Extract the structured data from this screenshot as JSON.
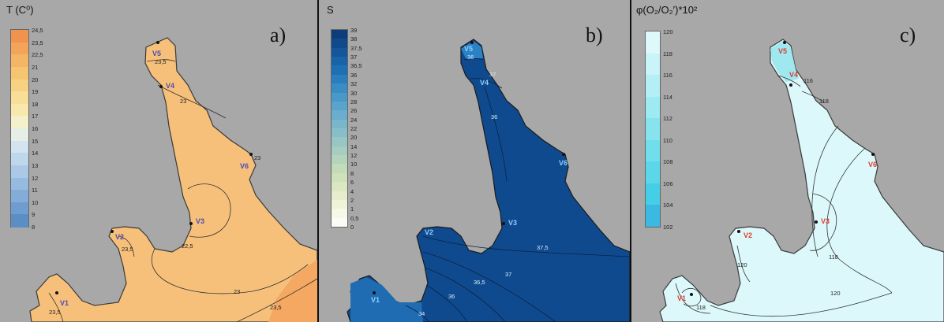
{
  "panels": [
    {
      "id": "a",
      "label": "a)",
      "legend_title": "T (C⁰)",
      "legend_ticks": [
        "24,5",
        "23,5",
        "22,5",
        "21",
        "20",
        "19",
        "18",
        "17",
        "16",
        "15",
        "14",
        "13",
        "12",
        "11",
        "10",
        "9",
        "8"
      ],
      "legend_colors": [
        "#f0934f",
        "#f2a55a",
        "#f4b665",
        "#f6c572",
        "#f7d283",
        "#f8de96",
        "#f8e8ae",
        "#f4f0cc",
        "#e6eee6",
        "#d3e3ef",
        "#bfd6ec",
        "#abc9e6",
        "#96bbe0",
        "#83acd8",
        "#6f9dcf",
        "#5c8ec6"
      ],
      "stations": [
        "V1",
        "V2",
        "V3",
        "V4",
        "V5",
        "V6"
      ],
      "contour_labels": [
        "23,5",
        "23",
        "22,5",
        "23",
        "23,5",
        "23,5",
        "23,5",
        "23"
      ],
      "map_fill": "#f7c07a",
      "map_fill_warm": "#f4a862",
      "station_color": "#4b4bb5"
    },
    {
      "id": "b",
      "label": "b)",
      "legend_title": "S",
      "legend_ticks": [
        "39",
        "38",
        "37,5",
        "37",
        "36,5",
        "36",
        "32",
        "30",
        "28",
        "26",
        "24",
        "22",
        "20",
        "14",
        "12",
        "10",
        "8",
        "6",
        "4",
        "2",
        "1",
        "0,5",
        "0"
      ],
      "legend_colors": [
        "#0d3d7a",
        "#114a8c",
        "#15569b",
        "#1963a9",
        "#1d70b4",
        "#2a7ebd",
        "#3a8cc4",
        "#4a98c8",
        "#5aa3cb",
        "#6aadcc",
        "#79b6ca",
        "#88bec8",
        "#97c6c4",
        "#a6cdbf",
        "#b4d4bb",
        "#c2dbb9",
        "#cfe1bb",
        "#dbe7c2",
        "#e6edcc",
        "#eff3d9",
        "#f6f8e8",
        "#fbfcf4"
      ],
      "stations": [
        "V1",
        "V2",
        "V3",
        "V4",
        "V5",
        "V6"
      ],
      "contour_labels": [
        "36",
        "37",
        "36",
        "37,5",
        "37",
        "36,5",
        "36",
        "34"
      ],
      "map_fill": "#0f4a8f",
      "station_color": "#8fd0ff"
    },
    {
      "id": "c",
      "label": "c)",
      "legend_title": "φ(O₂/O₂′)*10²",
      "legend_ticks": [
        "120",
        "118",
        "116",
        "114",
        "112",
        "110",
        "108",
        "106",
        "104",
        "102"
      ],
      "legend_colors": [
        "#dff9fb",
        "#c9f4f8",
        "#b3eff5",
        "#9deaf2",
        "#87e4ef",
        "#71deec",
        "#5bd7e9",
        "#45cfe6",
        "#3bb9e2"
      ],
      "stations": [
        "V1",
        "V2",
        "V3",
        "V4",
        "V5",
        "V6"
      ],
      "contour_labels": [
        "116",
        "118",
        "120",
        "118",
        "120",
        "118"
      ],
      "map_fill": "#dcf8fa",
      "station_color": "#e03c2e"
    }
  ]
}
